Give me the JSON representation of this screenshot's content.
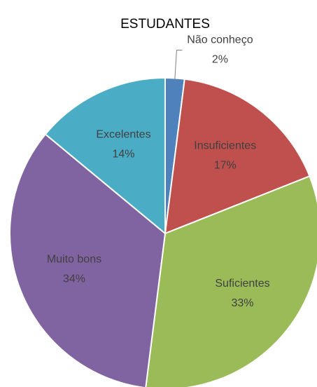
{
  "chart_data": {
    "type": "pie",
    "title": "ESTUDANTES",
    "categories": [
      "Não conheço",
      "Insuficientes",
      "Suficientes",
      "Muito bons",
      "Excelentes"
    ],
    "values": [
      2,
      17,
      33,
      34,
      14
    ],
    "value_labels": [
      "2%",
      "17%",
      "33%",
      "34%",
      "14%"
    ],
    "colors": [
      "#4f81bd",
      "#c0504d",
      "#9bbb59",
      "#8064a2",
      "#4bacc6"
    ]
  }
}
